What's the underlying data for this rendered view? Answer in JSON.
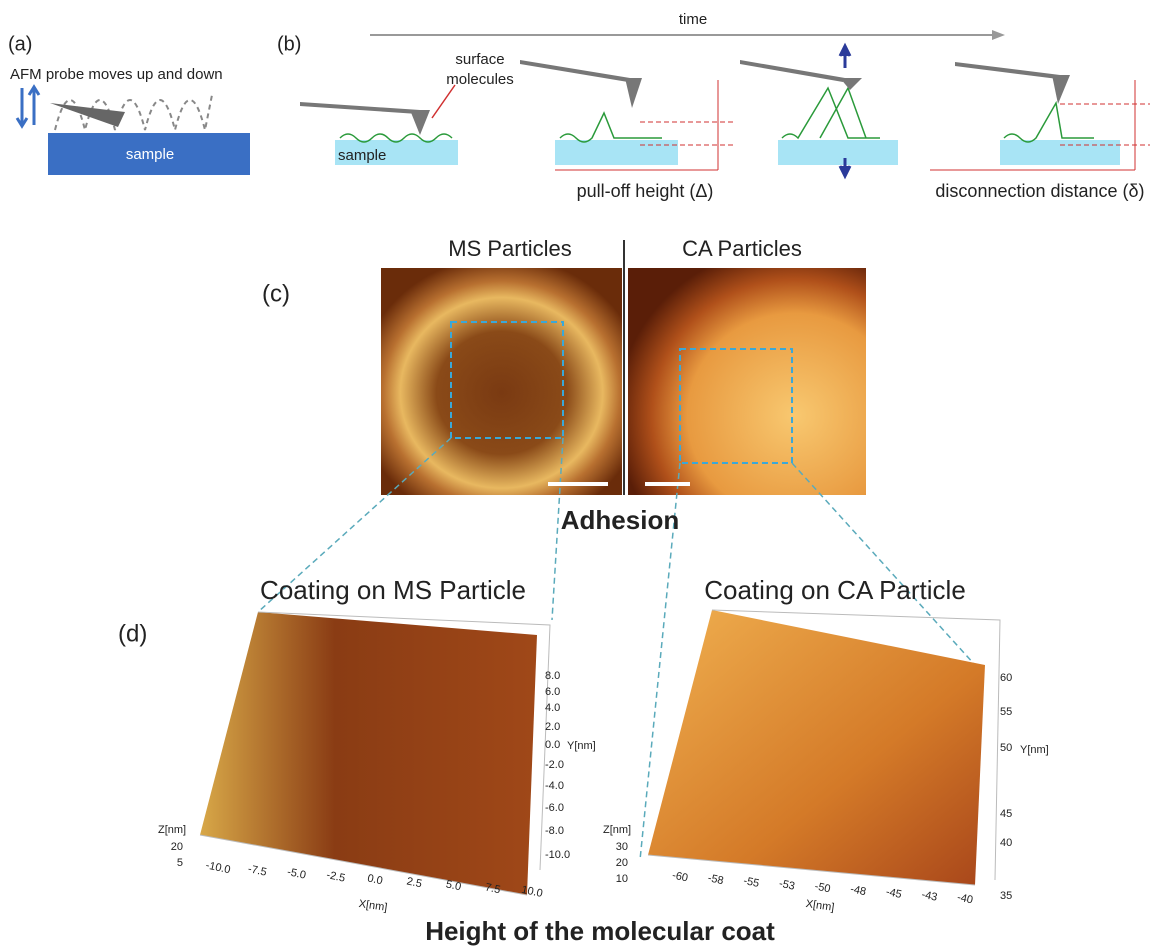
{
  "panel_a": {
    "label": "(a)",
    "caption": "AFM probe moves up and down",
    "sample": "sample"
  },
  "panel_b": {
    "label": "(b)",
    "time": "time",
    "surface_molecules": [
      "surface",
      "molecules"
    ],
    "sample": "sample",
    "pull_off": "pull-off height (Δ)",
    "disconnection": "disconnection distance (δ)"
  },
  "panel_c": {
    "label": "(c)",
    "left_title": "MS Particles",
    "right_title": "CA Particles",
    "caption": "Adhesion"
  },
  "panel_d": {
    "label": "(d)",
    "left": {
      "title": "Coating on MS Particle",
      "z_label": "Z[nm]",
      "z_ticks": [
        "20",
        "5"
      ],
      "y_label": "Y[nm]",
      "y_ticks": [
        "8.0",
        "6.0",
        "4.0",
        "2.0",
        "0.0",
        "-2.0",
        "-4.0",
        "-6.0",
        "-8.0",
        "-10.0"
      ],
      "x_label": "X[nm]",
      "x_ticks": [
        "-10.0",
        "-7.5",
        "-5.0",
        "-2.5",
        "0.0",
        "2.5",
        "5.0",
        "7.5",
        "10.0"
      ]
    },
    "right": {
      "title": "Coating on CA Particle",
      "z_label": "Z[nm]",
      "z_ticks": [
        "30",
        "20",
        "10"
      ],
      "y_label": "Y[nm]",
      "y_ticks": [
        "60",
        "55",
        "50",
        "45",
        "40",
        "35"
      ],
      "x_label": "X[nm]",
      "x_ticks": [
        "-60",
        "-58",
        "-55",
        "-53",
        "-50",
        "-48",
        "-45",
        "-43",
        "-40"
      ]
    },
    "caption": "Height of the molecular coat"
  }
}
